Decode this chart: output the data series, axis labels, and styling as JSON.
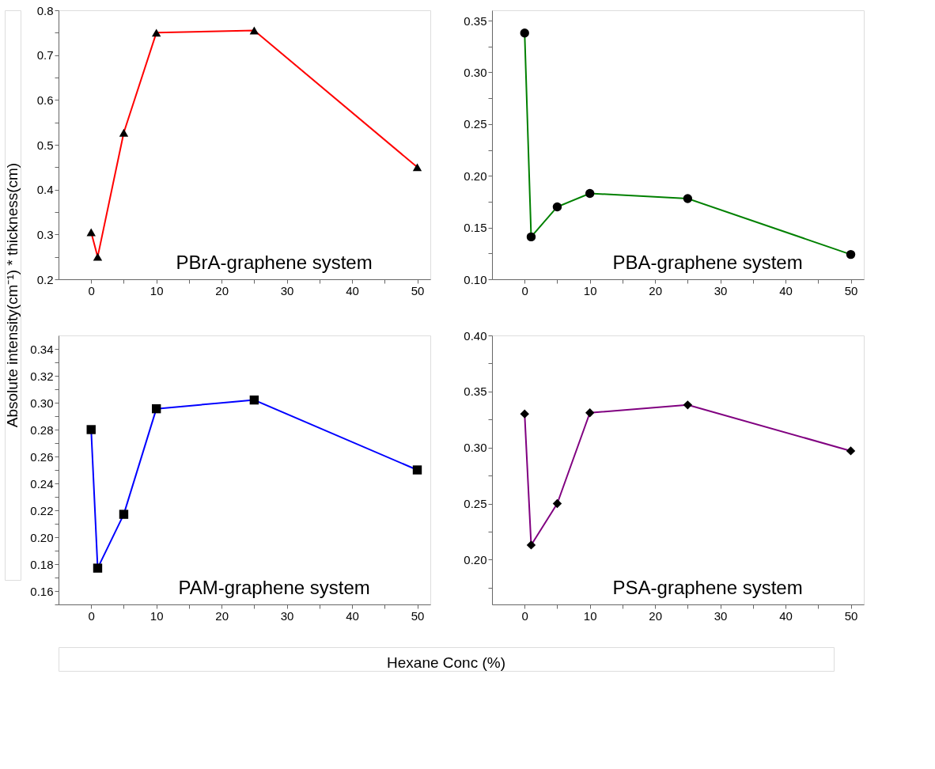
{
  "chart_data": [
    {
      "type": "line",
      "title": "PBrA-graphene system",
      "ylabel": "Absolute intensity(cm⁻¹) * thickness(cm)",
      "x": [
        0,
        1,
        5,
        10,
        25,
        50
      ],
      "marker": "triangle",
      "grid": false,
      "xlim": [
        -5,
        52
      ],
      "xticks": [
        0,
        {
          "value": 5,
          "label": null
        },
        10,
        {
          "value": 15,
          "label": null
        },
        20,
        {
          "value": 25,
          "label": null
        },
        30,
        {
          "value": 35,
          "label": null
        },
        40,
        {
          "value": 45,
          "label": null
        },
        50
      ],
      "ylim": [
        0.2,
        0.8
      ],
      "yticks": [
        0.2,
        {
          "value": 0.25,
          "label": null
        },
        0.3,
        {
          "value": 0.35,
          "label": null
        },
        0.4,
        {
          "value": 0.45,
          "label": null
        },
        0.5,
        {
          "value": 0.55,
          "label": null
        },
        0.6,
        {
          "value": 0.65,
          "label": null
        },
        0.7,
        {
          "value": 0.75,
          "label": null
        },
        0.8
      ],
      "series": [
        {
          "color": "#ff0000",
          "values": [
            0.305,
            0.25,
            0.527,
            0.75,
            0.755,
            0.45
          ]
        }
      ]
    },
    {
      "type": "line",
      "title": "PBA-graphene system",
      "x": [
        0,
        1,
        5,
        10,
        25,
        50
      ],
      "marker": "circle",
      "grid": false,
      "xlim": [
        -5,
        52
      ],
      "xticks": [
        0,
        {
          "value": 5,
          "label": null
        },
        10,
        {
          "value": 15,
          "label": null
        },
        20,
        {
          "value": 25,
          "label": null
        },
        30,
        {
          "value": 35,
          "label": null
        },
        40,
        {
          "value": 45,
          "label": null
        },
        50
      ],
      "ylim": [
        0.1,
        0.36
      ],
      "yticks": [
        "0.10",
        {
          "value": 0.125,
          "label": null
        },
        {
          "value": 0.15,
          "label": "0.15"
        },
        {
          "value": 0.175,
          "label": null
        },
        {
          "value": 0.2,
          "label": "0.20"
        },
        {
          "value": 0.225,
          "label": null
        },
        {
          "value": 0.25,
          "label": "0.25"
        },
        {
          "value": 0.275,
          "label": null
        },
        {
          "value": 0.3,
          "label": "0.30"
        },
        {
          "value": 0.325,
          "label": null
        },
        {
          "value": 0.35,
          "label": "0.35"
        }
      ],
      "series": [
        {
          "color": "#008000",
          "values": [
            0.338,
            0.141,
            0.17,
            0.183,
            0.178,
            0.124
          ]
        }
      ]
    },
    {
      "type": "line",
      "title": "PAM-graphene system",
      "xlabel": "Hexane Conc (%)",
      "x": [
        0,
        1,
        5,
        10,
        25,
        50
      ],
      "marker": "square",
      "grid": false,
      "xlim": [
        -5,
        52
      ],
      "xticks": [
        0,
        {
          "value": 5,
          "label": null
        },
        10,
        {
          "value": 15,
          "label": null
        },
        20,
        {
          "value": 25,
          "label": null
        },
        30,
        {
          "value": 35,
          "label": null
        },
        40,
        {
          "value": 45,
          "label": null
        },
        50
      ],
      "ylim": [
        0.15,
        0.35
      ],
      "yticks": [
        {
          "value": 0.15,
          "label": null
        },
        0.16,
        {
          "value": 0.17,
          "label": null
        },
        0.18,
        {
          "value": 0.19,
          "label": null
        },
        {
          "value": 0.2,
          "label": "0.20"
        },
        {
          "value": 0.21,
          "label": null
        },
        0.22,
        {
          "value": 0.23,
          "label": null
        },
        0.24,
        {
          "value": 0.25,
          "label": null
        },
        0.26,
        {
          "value": 0.27,
          "label": null
        },
        0.28,
        {
          "value": 0.29,
          "label": null
        },
        {
          "value": 0.3,
          "label": "0.30"
        },
        {
          "value": 0.31,
          "label": null
        },
        0.32,
        {
          "value": 0.33,
          "label": null
        },
        0.34
      ],
      "series": [
        {
          "color": "#0000ff",
          "values": [
            0.28,
            0.177,
            0.217,
            0.2955,
            0.302,
            0.25
          ]
        }
      ]
    },
    {
      "type": "line",
      "title": "PSA-graphene system",
      "x": [
        0,
        1,
        5,
        10,
        25,
        50
      ],
      "marker": "diamond",
      "grid": false,
      "xlim": [
        -5,
        52
      ],
      "xticks": [
        0,
        {
          "value": 5,
          "label": null
        },
        10,
        {
          "value": 15,
          "label": null
        },
        20,
        {
          "value": 25,
          "label": null
        },
        30,
        {
          "value": 35,
          "label": null
        },
        40,
        {
          "value": 45,
          "label": null
        },
        50
      ],
      "ylim": [
        0.16,
        0.4
      ],
      "yticks": [
        {
          "value": 0.175,
          "label": null
        },
        {
          "value": 0.2,
          "label": "0.20"
        },
        {
          "value": 0.225,
          "label": null
        },
        {
          "value": 0.25,
          "label": "0.25"
        },
        {
          "value": 0.275,
          "label": null
        },
        {
          "value": 0.3,
          "label": "0.30"
        },
        {
          "value": 0.325,
          "label": null
        },
        {
          "value": 0.35,
          "label": "0.35"
        },
        {
          "value": 0.375,
          "label": null
        },
        {
          "value": 0.4,
          "label": "0.40"
        }
      ],
      "series": [
        {
          "color": "#800080",
          "values": [
            0.33,
            0.213,
            0.25,
            0.331,
            0.338,
            0.297
          ]
        }
      ]
    }
  ]
}
